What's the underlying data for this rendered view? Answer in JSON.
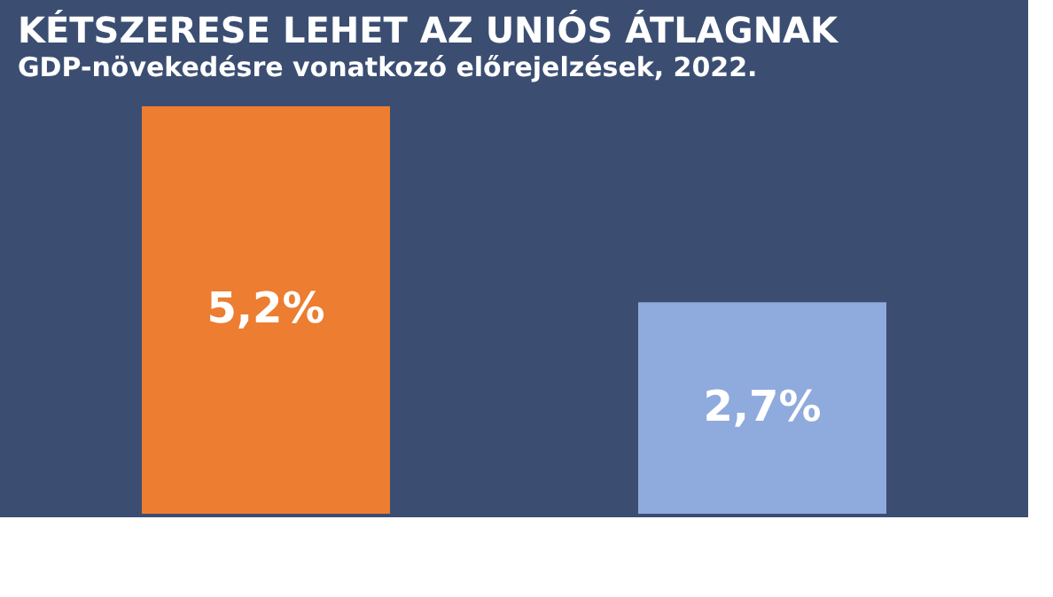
{
  "chart_data": {
    "type": "bar",
    "title": "KÉTSZERESE LEHET AZ UNIÓS ÁTLAGNAK",
    "subtitle": "GDP-növekedésre vonatkozó előrejelzések, 2022.",
    "categories": [
      null,
      null
    ],
    "values": [
      5.2,
      2.7
    ],
    "colors": [
      "#ed7d31",
      "#8faadc"
    ],
    "value_labels": [
      "5,2%",
      "2,7%"
    ]
  }
}
